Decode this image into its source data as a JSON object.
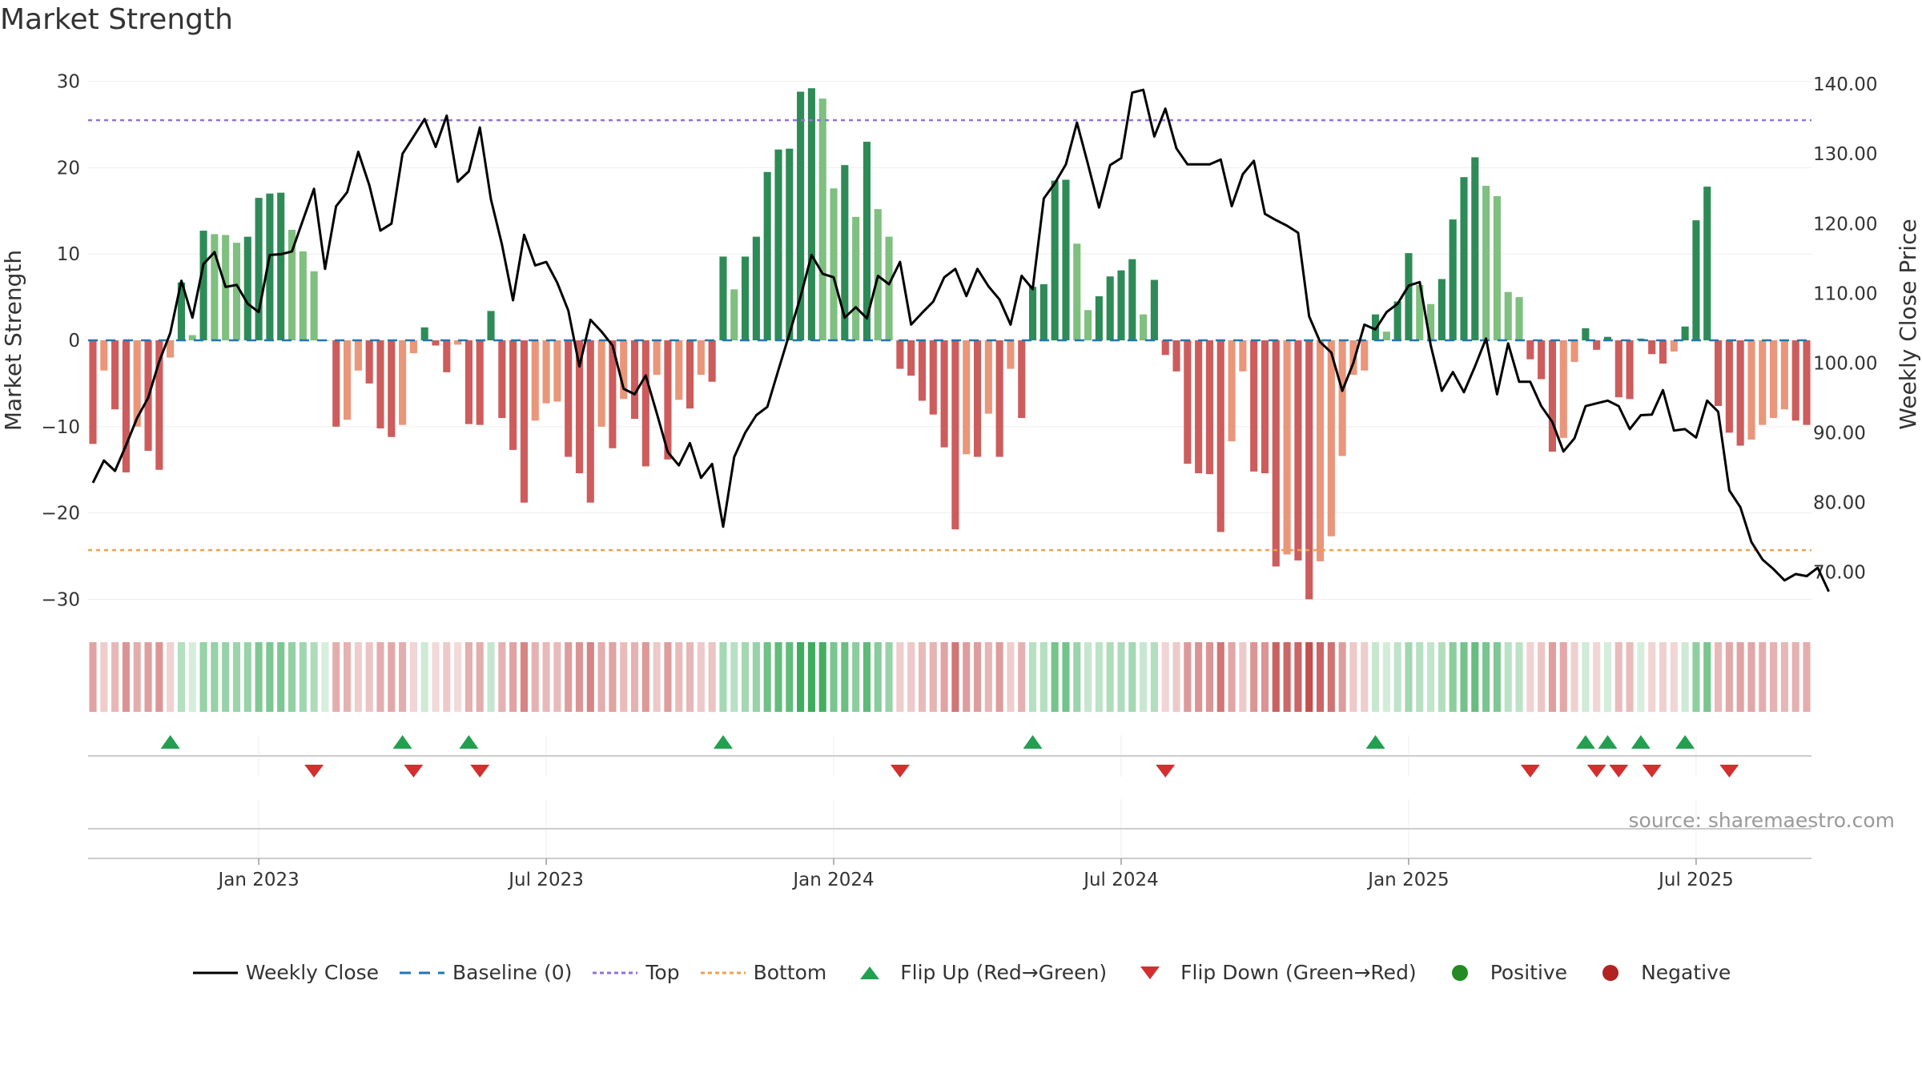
{
  "title": "Market Strength",
  "source": "source: sharemaestro.com",
  "chart_data": {
    "type": "bar+line",
    "title": "Market Strength",
    "ylabel_left": "Market Strength",
    "ylabel_right": "Weekly Close Price",
    "ylim_left": [
      -32,
      32
    ],
    "ylim_right": [
      63.6,
      142.9
    ],
    "yticks_left": [
      30,
      20,
      10,
      0,
      -10,
      -20,
      -30
    ],
    "yticks_left_labels": [
      "30",
      "20",
      "10",
      "0",
      "−10",
      "−20",
      "−30"
    ],
    "yticks_right": [
      140,
      130,
      120,
      110,
      100,
      90,
      80,
      70
    ],
    "yticks_right_labels": [
      "140.00",
      "130.00",
      "120.00",
      "110.00",
      "100.00",
      "90.00",
      "80.00",
      "70.00"
    ],
    "xticks": [
      "Jan 2023",
      "Jul 2023",
      "Jan 2024",
      "Jul 2024",
      "Jan 2025",
      "Jul 2025"
    ],
    "xtick_weeks": [
      15,
      41,
      67,
      93,
      119,
      145
    ],
    "top_level": 25.5,
    "bottom_level": -24.3,
    "strength": [
      -12,
      -3.5,
      -8,
      -15.3,
      -10,
      -12.8,
      -15,
      -2,
      6.7,
      0.6,
      12.7,
      12.3,
      12.2,
      11.3,
      12,
      16.5,
      17,
      17.1,
      12.8,
      10.3,
      8,
      0,
      -10,
      -9.2,
      -3.5,
      -5,
      -10.2,
      -11.2,
      -9.8,
      -1.5,
      1.5,
      -0.6,
      -3.7,
      -0.5,
      -9.7,
      -9.8,
      3.4,
      -9,
      -12.7,
      -18.8,
      -9.3,
      -7.3,
      -7.1,
      -13.5,
      -15.4,
      -18.8,
      -10,
      -12.5,
      -6.8,
      -9.1,
      -14.6,
      -4,
      -13.8,
      -6.9,
      -7.9,
      -4,
      -4.8,
      9.7,
      5.9,
      9.7,
      12,
      19.5,
      22.1,
      22.2,
      28.8,
      29.2,
      28,
      17.6,
      20.3,
      14.3,
      23,
      15.2,
      12,
      -3.3,
      -4.1,
      -7,
      -8.6,
      -12.4,
      -21.9,
      -13.2,
      -13.5,
      -8.5,
      -13.5,
      -3.3,
      -9,
      6.2,
      6.5,
      18.5,
      18.6,
      11.2,
      3.5,
      5.1,
      7.4,
      8.1,
      9.4,
      3,
      7,
      -1.7,
      -3.6,
      -14.3,
      -15.4,
      -15.5,
      -22.2,
      -11.7,
      -3.6,
      -15.2,
      -15.4,
      -26.2,
      -24.8,
      -25.5,
      -30,
      -25.6,
      -22.7,
      -13.4,
      -4,
      -3.5,
      3,
      1,
      4.5,
      10.1,
      6.4,
      4.2,
      7.1,
      14,
      18.9,
      21.2,
      17.9,
      16.7,
      5.6,
      5,
      -2.2,
      -4.5,
      -12.9,
      -11.3,
      -2.5,
      1.4,
      -1.1,
      0.4,
      -6.6,
      -6.8,
      0.2,
      -1.6,
      -2.7,
      -1.3,
      1.6,
      13.9,
      17.8,
      -7.6,
      -10.7,
      -12.2,
      -11.5,
      -9.8,
      -9,
      -8,
      -9.3,
      -9.8
    ],
    "weekly_close": [
      82.8,
      86,
      84.5,
      88.2,
      92.1,
      95,
      100.2,
      104.3,
      111.8,
      106.5,
      114.2,
      115.9,
      110.9,
      111.2,
      108.5,
      107.3,
      115.5,
      115.6,
      116,
      120.5,
      125,
      113.5,
      122.5,
      124.5,
      130.3,
      125.5,
      119,
      120,
      130,
      132.5,
      135,
      131,
      135.5,
      126,
      127.5,
      133.8,
      123.5,
      117,
      109,
      118.4,
      114,
      114.5,
      111.5,
      107.5,
      99.5,
      106.2,
      104.5,
      102.5,
      96.3,
      95.5,
      98.2,
      92.8,
      87.2,
      85.3,
      88.5,
      83.5,
      85.5,
      76.5,
      86.5,
      90,
      92.5,
      93.7,
      99,
      104.2,
      109.5,
      115.5,
      112.8,
      112.3,
      106.5,
      108,
      106.4,
      112.5,
      111.3,
      114.5,
      105.5,
      107.2,
      108.8,
      112.3,
      113.5,
      109.6,
      113.5,
      111,
      109.1,
      105.5,
      112.5,
      110.6,
      123.6,
      125.8,
      128.5,
      134.5,
      128.5,
      122.3,
      128.4,
      129.4,
      138.8,
      139.2,
      132.5,
      136.5,
      130.8,
      128.5,
      128.5,
      128.5,
      129.2,
      122.5,
      127.1,
      129,
      121.4,
      120.5,
      119.7,
      118.7,
      106.7,
      103,
      101.5,
      96,
      100,
      105.5,
      104.8,
      107.3,
      108.5,
      111.1,
      111.6,
      102.5,
      96,
      98.7,
      95.8,
      99.5,
      103.5,
      95.5,
      102.8,
      97.3,
      97.3,
      93.8,
      91.5,
      87.3,
      89.2,
      93.8,
      94.2,
      94.6,
      93.8,
      90.5,
      92.5,
      92.6,
      96.1,
      90.3,
      90.5,
      89.3,
      94.6,
      93,
      81.7,
      79.3,
      74.3,
      71.8,
      70.4,
      68.8,
      69.7,
      69.4,
      70.6,
      67.2
    ],
    "flip_up_weeks": [
      7,
      28,
      34,
      57,
      85,
      116,
      135,
      137,
      140,
      144
    ],
    "flip_down_weeks": [
      20,
      29,
      35,
      73,
      97,
      130,
      136,
      138,
      141,
      148
    ],
    "colors": {
      "strong_green": "#2e8b57",
      "light_green": "#7fbf7f",
      "strong_red": "#cd5c5c",
      "light_red": "#e9967a",
      "flip_up": "#22a050",
      "flip_down": "#d32f2f",
      "top_line": "#9370db",
      "bottom_line": "#f0a050",
      "baseline": "#1f77b4",
      "close_line": "#000000"
    }
  },
  "legend": {
    "items": [
      {
        "label": "Weekly Close",
        "kind": "line"
      },
      {
        "label": "Baseline (0)",
        "kind": "dashed"
      },
      {
        "label": "Top",
        "kind": "dotted-purple"
      },
      {
        "label": "Bottom",
        "kind": "dotted-orange"
      },
      {
        "label": "Flip Up (Red→Green)",
        "kind": "tri-up"
      },
      {
        "label": "Flip Down (Green→Red)",
        "kind": "tri-down"
      },
      {
        "label": "Positive",
        "kind": "dot-green"
      },
      {
        "label": "Negative",
        "kind": "dot-red"
      }
    ]
  }
}
